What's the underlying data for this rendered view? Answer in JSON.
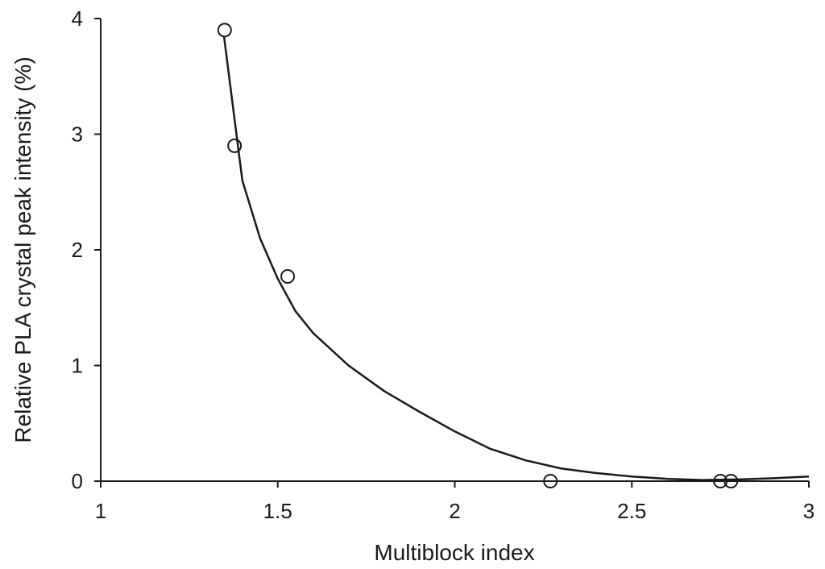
{
  "chart_data": {
    "type": "scatter",
    "x_label": "Multiblock index",
    "y_label": "Relative PLA crystal peak intensity  (%)",
    "xlim": [
      1,
      3
    ],
    "ylim": [
      0,
      4
    ],
    "xticks": [
      1,
      1.5,
      2,
      2.5,
      3
    ],
    "yticks": [
      0,
      1,
      2,
      3,
      4
    ],
    "series": [
      {
        "type": "scatter",
        "color": "#1a1a1a",
        "x": [
          1.35,
          1.378,
          1.528,
          2.27,
          2.75,
          2.78
        ],
        "values": [
          3.9,
          2.9,
          1.77,
          0,
          0,
          0
        ]
      },
      {
        "type": "line",
        "color": "#1a1a1a",
        "x": [
          1.348,
          1.4,
          1.45,
          1.5,
          1.55,
          1.6,
          1.7,
          1.8,
          1.9,
          2.0,
          2.1,
          2.2,
          2.3,
          2.4,
          2.5,
          2.6,
          2.7,
          2.8,
          2.9,
          3.0
        ],
        "values": [
          3.85,
          2.6,
          2.1,
          1.75,
          1.47,
          1.28,
          1.0,
          0.78,
          0.6,
          0.43,
          0.28,
          0.18,
          0.11,
          0.07,
          0.04,
          0.02,
          0.01,
          0.015,
          0.025,
          0.04
        ]
      }
    ]
  }
}
